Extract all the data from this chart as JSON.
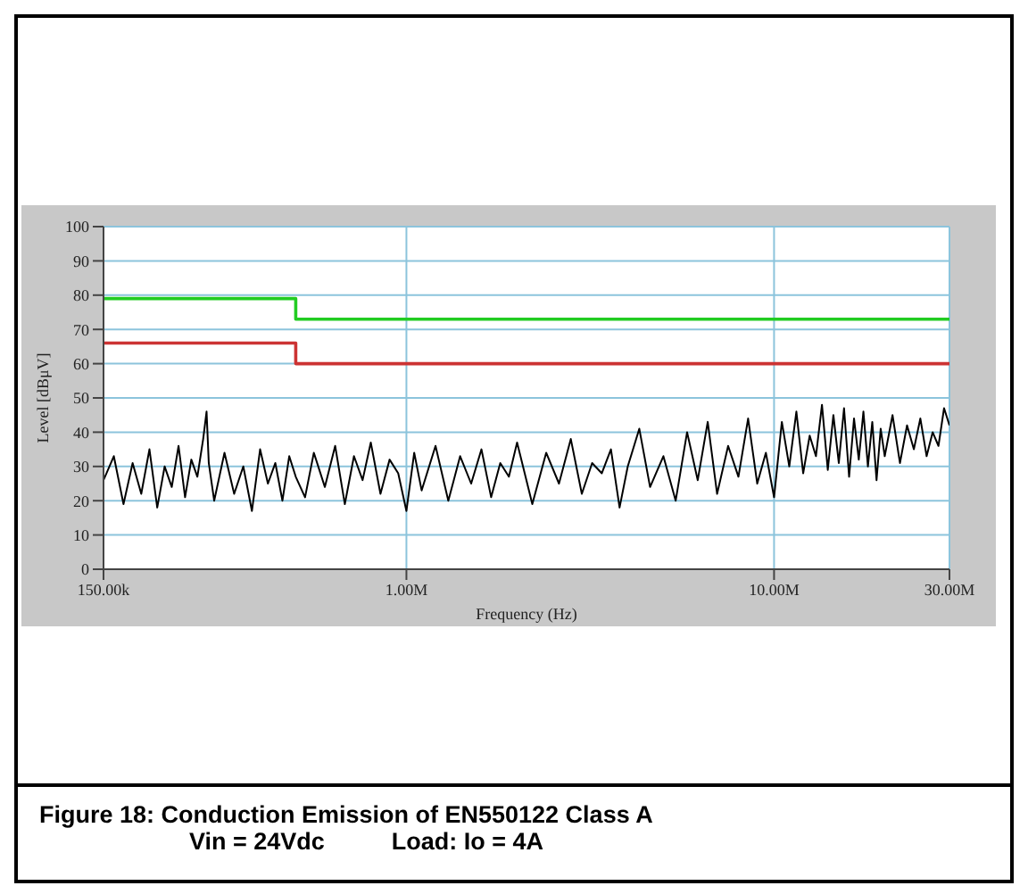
{
  "chart_data": {
    "type": "line",
    "title": "Figure 18:  Conduction Emission of EN550122 Class A",
    "subtitle": "Vin = 24Vdc          Load: Io = 4A",
    "xlabel": "Frequency (Hz)",
    "ylabel": "Level [dBμV]",
    "log": "x",
    "grid": true,
    "legend": false,
    "marker": "none",
    "line_style": "solid",
    "xlim": [
      150000,
      30000000
    ],
    "xticks": [
      {
        "value": 150000,
        "label": "150.00k"
      },
      {
        "value": 1000000,
        "label": "1.00M"
      },
      {
        "value": 10000000,
        "label": "10.00M"
      },
      {
        "value": 30000000,
        "label": "30.00M"
      }
    ],
    "ylim": [
      0,
      100
    ],
    "yticks": [
      0,
      10,
      20,
      30,
      40,
      50,
      60,
      70,
      80,
      90,
      100
    ],
    "series": [
      {
        "type": "line",
        "color": "#000000",
        "x": [
          150000,
          160000,
          170000,
          180000,
          190000,
          200000,
          210000,
          220000,
          230000,
          240000,
          250000,
          260000,
          270000,
          280000,
          286000,
          290000,
          300000,
          320000,
          340000,
          360000,
          380000,
          400000,
          420000,
          440000,
          460000,
          480000,
          500000,
          530000,
          560000,
          600000,
          640000,
          680000,
          720000,
          760000,
          800000,
          850000,
          900000,
          950000,
          1000000,
          1050000,
          1100000,
          1200000,
          1300000,
          1400000,
          1500000,
          1600000,
          1700000,
          1800000,
          1900000,
          2000000,
          2200000,
          2400000,
          2600000,
          2800000,
          3000000,
          3200000,
          3400000,
          3600000,
          3800000,
          4000000,
          4300000,
          4600000,
          5000000,
          5400000,
          5800000,
          6200000,
          6600000,
          7000000,
          7500000,
          8000000,
          8500000,
          9000000,
          9500000,
          10000000,
          10500000,
          11000000,
          11500000,
          12000000,
          12500000,
          13000000,
          13500000,
          14000000,
          14500000,
          15000000,
          15500000,
          16000000,
          16500000,
          17000000,
          17500000,
          18000000,
          18500000,
          19000000,
          19500000,
          20000000,
          21000000,
          22000000,
          23000000,
          24000000,
          25000000,
          26000000,
          27000000,
          28000000,
          29000000,
          30000000
        ],
        "values": [
          26,
          33,
          19,
          31,
          22,
          35,
          18,
          30,
          24,
          36,
          21,
          32,
          27,
          38,
          46,
          31,
          20,
          34,
          22,
          30,
          17,
          35,
          25,
          31,
          20,
          33,
          27,
          21,
          34,
          24,
          36,
          19,
          33,
          26,
          37,
          22,
          32,
          28,
          17,
          34,
          23,
          36,
          20,
          33,
          25,
          35,
          21,
          31,
          27,
          37,
          19,
          34,
          25,
          38,
          22,
          31,
          28,
          35,
          18,
          30,
          41,
          24,
          33,
          20,
          40,
          26,
          43,
          22,
          36,
          27,
          44,
          25,
          34,
          21,
          43,
          30,
          46,
          28,
          39,
          33,
          48,
          29,
          45,
          31,
          47,
          27,
          44,
          32,
          46,
          30,
          43,
          26,
          41,
          33,
          45,
          31,
          42,
          35,
          44,
          33,
          40,
          36,
          47,
          42
        ]
      },
      {
        "type": "step",
        "color": "#22cc22",
        "x": [
          150000,
          500000,
          30000000
        ],
        "values": [
          79,
          73,
          73
        ]
      },
      {
        "type": "step",
        "color": "#cc3333",
        "x": [
          150000,
          500000,
          30000000
        ],
        "values": [
          66,
          60,
          60
        ]
      }
    ]
  }
}
